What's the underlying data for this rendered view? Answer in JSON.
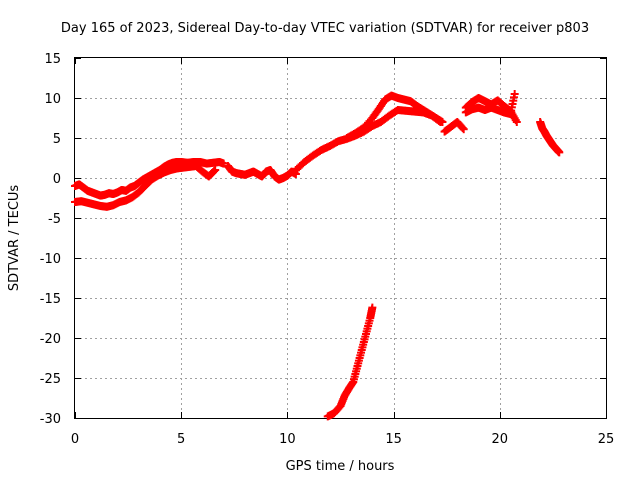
{
  "chart_data": {
    "type": "scatter",
    "title": "Day 165 of 2023, Sidereal Day-to-day VTEC variation (SDTVAR) for receiver p803",
    "xlabel": "GPS time / hours",
    "ylabel": "SDTVAR / TECUs",
    "xlim": [
      0,
      25
    ],
    "ylim": [
      -30,
      15
    ],
    "xticks": [
      0,
      5,
      10,
      15,
      20,
      25
    ],
    "yticks": [
      15,
      10,
      5,
      0,
      -5,
      -10,
      -15,
      -20,
      -25,
      -30
    ],
    "grid": true,
    "marker": "plus",
    "series": [
      {
        "name": "main",
        "color": "#ff0000",
        "x": [
          0.0,
          0.2,
          0.4,
          0.6,
          0.8,
          1.0,
          1.2,
          1.4,
          1.6,
          1.8,
          2.0,
          2.2,
          2.4,
          2.6,
          2.8,
          3.0,
          3.2,
          3.4,
          3.6,
          3.8,
          4.0,
          4.2,
          4.4,
          4.6,
          4.8,
          5.0,
          5.3,
          5.6,
          5.9,
          6.2,
          6.5,
          6.8,
          7.0
        ],
        "y": [
          -1.0,
          -0.8,
          -1.2,
          -1.6,
          -1.8,
          -2.0,
          -2.2,
          -2.1,
          -1.9,
          -2.0,
          -1.8,
          -1.5,
          -1.6,
          -1.2,
          -1.0,
          -0.6,
          -0.2,
          0.1,
          0.4,
          0.7,
          1.0,
          1.4,
          1.7,
          1.9,
          2.0,
          2.0,
          1.9,
          2.0,
          2.0,
          1.8,
          1.9,
          2.0,
          1.8
        ]
      },
      {
        "name": "lower",
        "color": "#ff0000",
        "x": [
          0.0,
          0.3,
          0.6,
          0.9,
          1.2,
          1.5,
          1.8,
          2.1,
          2.4,
          2.7,
          3.0,
          3.3,
          3.6,
          3.9,
          4.2,
          4.5,
          4.8,
          5.1,
          5.4,
          5.7,
          6.0,
          6.3,
          6.6
        ],
        "y": [
          -3.0,
          -2.9,
          -3.1,
          -3.3,
          -3.5,
          -3.6,
          -3.4,
          -3.0,
          -2.8,
          -2.4,
          -1.8,
          -1.0,
          -0.2,
          0.3,
          0.7,
          1.0,
          1.2,
          1.3,
          1.4,
          1.5,
          0.8,
          0.2,
          1.0
        ]
      },
      {
        "name": "segment-7-10",
        "color": "#ff0000",
        "x": [
          7.2,
          7.4,
          7.6,
          7.8,
          8.0,
          8.2,
          8.4,
          8.6,
          8.8,
          9.0,
          9.2,
          9.4,
          9.6,
          9.8,
          10.0,
          10.2,
          10.4
        ],
        "y": [
          1.5,
          0.8,
          0.6,
          0.5,
          0.4,
          0.6,
          0.8,
          0.5,
          0.2,
          0.8,
          1.0,
          0.2,
          -0.2,
          0.0,
          0.3,
          0.8,
          0.5
        ]
      },
      {
        "name": "rise",
        "color": "#ff0000",
        "x": [
          10.4,
          10.8,
          11.2,
          11.6,
          12.0,
          12.4,
          12.8,
          13.2,
          13.6,
          14.0,
          14.4,
          14.8,
          15.2,
          15.6,
          16.0,
          16.4,
          16.8,
          17.2
        ],
        "y": [
          1.0,
          2.0,
          2.8,
          3.5,
          4.0,
          4.6,
          4.9,
          5.3,
          5.8,
          6.5,
          7.0,
          7.8,
          8.5,
          8.4,
          8.3,
          8.2,
          7.8,
          7.0
        ]
      },
      {
        "name": "upper",
        "color": "#ff0000",
        "x": [
          12.8,
          13.2,
          13.6,
          14.0,
          14.3,
          14.6,
          14.9,
          15.2,
          15.5,
          15.8,
          16.1,
          16.4,
          16.7,
          17.0,
          17.3
        ],
        "y": [
          5.0,
          5.6,
          6.3,
          7.5,
          8.6,
          9.8,
          10.3,
          10.0,
          9.8,
          9.6,
          9.0,
          8.5,
          8.0,
          7.5,
          7.0
        ]
      },
      {
        "name": "sparse-17-18",
        "color": "#ff0000",
        "x": [
          17.4,
          17.7,
          18.0,
          18.3
        ],
        "y": [
          5.8,
          6.4,
          7.0,
          6.1
        ]
      },
      {
        "name": "band-18-21",
        "color": "#ff0000",
        "x": [
          18.4,
          18.7,
          19.0,
          19.3,
          19.6,
          19.9,
          20.2,
          20.5,
          20.8
        ],
        "y": [
          8.8,
          9.5,
          10.0,
          9.6,
          9.2,
          9.7,
          9.0,
          8.4,
          7.0
        ]
      },
      {
        "name": "band-18-21-lower",
        "color": "#ff0000",
        "x": [
          18.4,
          18.7,
          19.0,
          19.3,
          19.6,
          19.9,
          20.2,
          20.5,
          20.7
        ],
        "y": [
          8.2,
          8.6,
          8.8,
          8.5,
          8.8,
          8.5,
          8.2,
          8.0,
          10.5
        ]
      },
      {
        "name": "decline-22-23",
        "color": "#ff0000",
        "x": [
          21.9,
          22.0,
          22.1,
          22.2,
          22.3,
          22.4,
          22.5,
          22.6,
          22.7,
          22.8
        ],
        "y": [
          7.0,
          6.2,
          5.8,
          5.3,
          4.9,
          4.5,
          4.1,
          3.8,
          3.5,
          3.2
        ]
      },
      {
        "name": "drop",
        "color": "#ff0000",
        "x": [
          11.9,
          12.2,
          12.5,
          12.7,
          12.9,
          13.1,
          13.3,
          13.5,
          13.7,
          13.9,
          14.0
        ],
        "y": [
          -29.8,
          -29.4,
          -28.5,
          -27.2,
          -26.3,
          -25.5,
          -23.5,
          -21.5,
          -19.5,
          -17.5,
          -16.2
        ]
      }
    ]
  }
}
